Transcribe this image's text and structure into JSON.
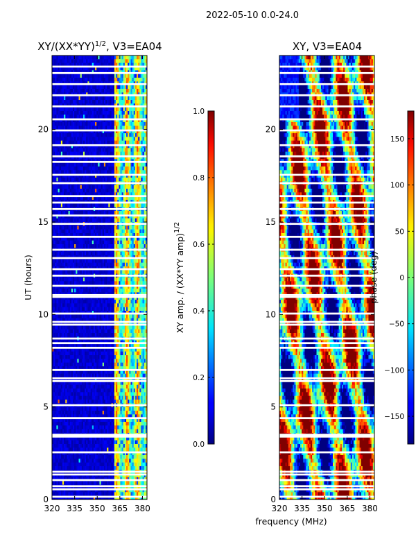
{
  "suptitle": "2022-05-10 0.0-24.0",
  "xlabel": "frequency (MHz)",
  "colors": {
    "background": "#ffffff",
    "axes": "#000000",
    "gap": "#ffffff"
  },
  "chart_data": [
    {
      "type": "heatmap",
      "title_main": "XY/(XX*YY)",
      "title_sup": "1/2",
      "title_tail": ", V3=EA04",
      "ylabel": "UT (hours)",
      "xlim": [
        320,
        383
      ],
      "ylim": [
        0,
        24
      ],
      "xticks": [
        320,
        335,
        350,
        365,
        380
      ],
      "yticks": [
        0,
        5,
        10,
        15,
        20
      ],
      "colormap": "jet",
      "colorbar": {
        "label_main": "XY amp. / (XX*YY amp)",
        "label_sup": "1/2",
        "range": [
          0.0,
          1.0
        ],
        "ticks": [
          "0.0",
          "0.2",
          "0.4",
          "0.6",
          "0.8",
          "1.0"
        ],
        "tick_values": [
          0.0,
          0.2,
          0.4,
          0.6,
          0.8,
          1.0
        ]
      },
      "description_values": {
        "low_band_mean": 0.06,
        "high_band_start_mhz": 361,
        "high_band_mean": 0.55
      }
    },
    {
      "type": "heatmap",
      "title_main": "XY, V3=EA04",
      "ylabel": "",
      "xlim": [
        320,
        383
      ],
      "ylim": [
        0,
        24
      ],
      "xticks": [
        320,
        335,
        350,
        365,
        380
      ],
      "yticks": [
        0,
        5,
        10,
        15,
        20
      ],
      "colormap": "jet",
      "colorbar": {
        "label_main": "phase (deg)",
        "range": [
          -180,
          180
        ],
        "ticks": [
          "150",
          "100",
          "50",
          "0",
          "−50",
          "−100",
          "−150"
        ],
        "tick_values": [
          150,
          100,
          50,
          0,
          -50,
          -100,
          -150
        ]
      }
    }
  ],
  "gap_hours": [
    0.15,
    0.55,
    0.72,
    1.05,
    1.35,
    1.5,
    2.55,
    3.4,
    3.5,
    4.4,
    5.1,
    6.4,
    6.55,
    7.0,
    8.2,
    8.45,
    8.7,
    9.45,
    9.6,
    10.05,
    10.95,
    11.05,
    11.55,
    12.1,
    12.45,
    13.05,
    13.5,
    14.2,
    14.9,
    15.35,
    15.7,
    16.05,
    16.4,
    17.1,
    17.55,
    18.25,
    18.55,
    19.15,
    19.95,
    20.55,
    21.25,
    21.85,
    22.45,
    23.05,
    23.4
  ]
}
